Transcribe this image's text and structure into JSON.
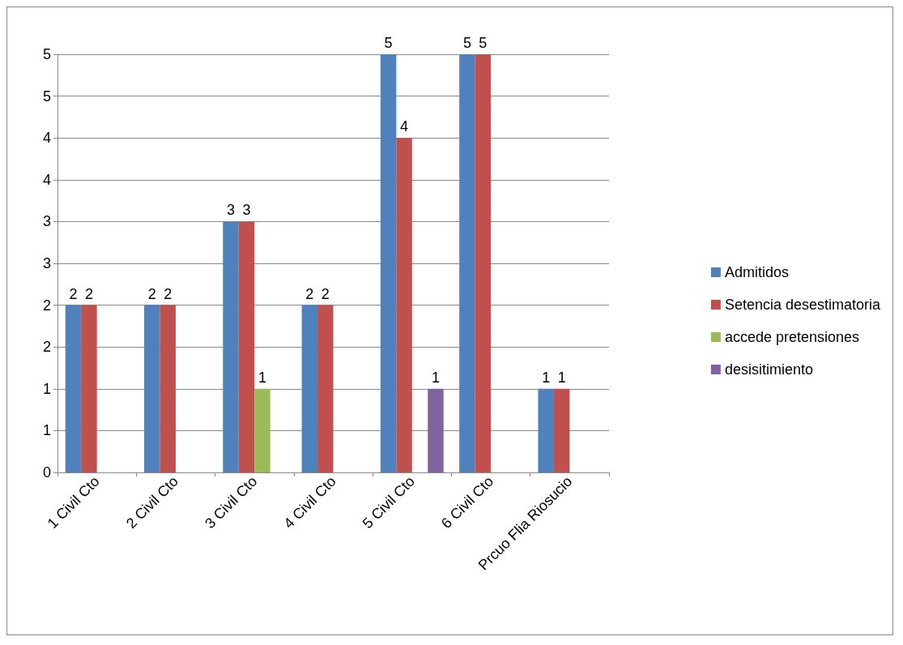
{
  "chart_data": {
    "type": "bar",
    "categories": [
      "1 Civil Cto",
      "2 Civil Cto",
      "3 Civil Cto",
      "4 Civil Cto",
      "5 Civil Cto",
      "6 Civil Cto",
      "Prcuo Flia Riosucio"
    ],
    "series": [
      {
        "name": "Admitidos",
        "color": "#4f81bd",
        "values": [
          2,
          2,
          3,
          2,
          5,
          5,
          1
        ]
      },
      {
        "name": "Setencia desestimatoria",
        "color": "#c0504d",
        "values": [
          2,
          2,
          3,
          2,
          4,
          5,
          1
        ]
      },
      {
        "name": "accede pretensiones",
        "color": "#9bbb59",
        "values": [
          null,
          null,
          1,
          null,
          null,
          null,
          null
        ]
      },
      {
        "name": "desisitimiento",
        "color": "#8064a2",
        "values": [
          null,
          null,
          null,
          null,
          1,
          null,
          null
        ]
      }
    ],
    "ylim": [
      0,
      5
    ],
    "yticks": [
      0,
      {
        "value": 0.5,
        "label": "1"
      },
      {
        "value": 1,
        "label": "1"
      },
      {
        "value": 1.5,
        "label": "2"
      },
      {
        "value": 2,
        "label": "2"
      },
      {
        "value": 2.5,
        "label": "3"
      },
      {
        "value": 3,
        "label": "3"
      },
      {
        "value": 3.5,
        "label": "4"
      },
      {
        "value": 4,
        "label": "4"
      },
      {
        "value": 4.5,
        "label": "5"
      },
      5
    ],
    "grid": "y",
    "legend": "right",
    "data_labels": true
  }
}
